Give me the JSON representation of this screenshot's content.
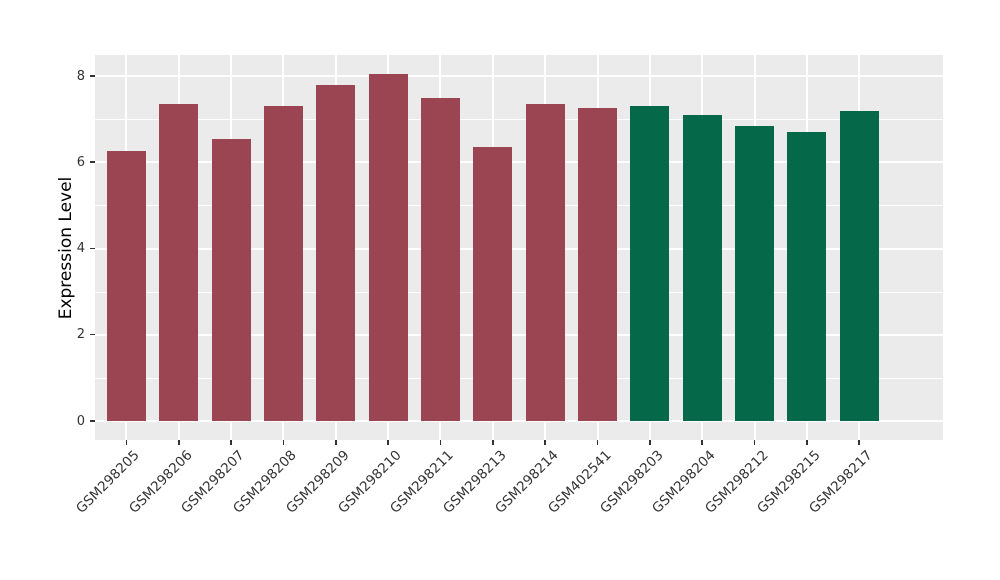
{
  "figure": {
    "background": "#ffffff",
    "panel_background": "#ebebeb",
    "grid_color": "#ffffff",
    "axis_text_color": "#333333",
    "axis_title_color": "#000000",
    "bar_color_group1": "#9a4551",
    "bar_color_group2": "#056949"
  },
  "chart_data": {
    "type": "bar",
    "title": "",
    "xlabel": "",
    "ylabel": "Expression Level",
    "ylim": [
      0,
      8.5
    ],
    "yticks": [
      0,
      2,
      4,
      6,
      8
    ],
    "grid": true,
    "legend": "none",
    "bars": [
      {
        "label": "GSM298205",
        "value": 6.25,
        "color": "#9a4551"
      },
      {
        "label": "GSM298206",
        "value": 7.35,
        "color": "#9a4551"
      },
      {
        "label": "GSM298207",
        "value": 6.55,
        "color": "#9a4551"
      },
      {
        "label": "GSM298208",
        "value": 7.3,
        "color": "#9a4551"
      },
      {
        "label": "GSM298209",
        "value": 7.8,
        "color": "#9a4551"
      },
      {
        "label": "GSM298210",
        "value": 8.05,
        "color": "#9a4551"
      },
      {
        "label": "GSM298211",
        "value": 7.5,
        "color": "#9a4551"
      },
      {
        "label": "GSM298213",
        "value": 6.35,
        "color": "#9a4551"
      },
      {
        "label": "GSM298214",
        "value": 7.35,
        "color": "#9a4551"
      },
      {
        "label": "GSM402541",
        "value": 7.25,
        "color": "#9a4551"
      },
      {
        "label": "GSM298203",
        "value": 7.3,
        "color": "#056949"
      },
      {
        "label": "GSM298204",
        "value": 7.1,
        "color": "#056949"
      },
      {
        "label": "GSM298212",
        "value": 6.85,
        "color": "#056949"
      },
      {
        "label": "GSM298215",
        "value": 6.7,
        "color": "#056949"
      },
      {
        "label": "GSM298217",
        "value": 7.2,
        "color": "#056949"
      }
    ]
  }
}
